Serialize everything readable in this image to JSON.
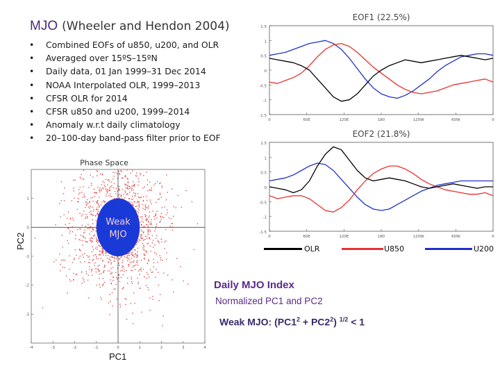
{
  "title": {
    "main": "MJO",
    "sub": "(Wheeler and Hendon 2004)"
  },
  "bullets": [
    "Combined EOFs of u850, u200, and OLR",
    "Averaged over 15ºS–15ºN",
    "Daily data, 01 Jan 1999–31 Dec 2014",
    "NOAA Interpolated OLR, 1999–2013",
    "CFSR OLR for 2014",
    "CFSR u850 and u200, 1999–2014",
    "Anomaly w.r.t daily climatology",
    "20–100-day band-pass filter prior to EOF"
  ],
  "eof1": {
    "title": "EOF1  (22.5%)",
    "yticks": [
      "1.5",
      "1",
      "0.5",
      "0",
      "-0.5",
      "-1",
      "-1.5"
    ],
    "xticks": [
      "0",
      "60E",
      "120E",
      "180",
      "120W",
      "60W",
      "0"
    ],
    "ylim": [
      -1.5,
      1.5
    ],
    "series": {
      "olr": [
        0.4,
        0.35,
        0.3,
        0.25,
        0.15,
        0.0,
        -0.3,
        -0.6,
        -0.9,
        -1.05,
        -1.0,
        -0.8,
        -0.5,
        -0.2,
        0.0,
        0.15,
        0.25,
        0.35,
        0.3,
        0.25,
        0.3,
        0.35,
        0.4,
        0.45,
        0.5,
        0.45,
        0.4,
        0.35,
        0.4
      ],
      "u850": [
        -0.4,
        -0.45,
        -0.35,
        -0.25,
        -0.1,
        0.15,
        0.45,
        0.7,
        0.85,
        0.9,
        0.8,
        0.6,
        0.35,
        0.1,
        -0.1,
        -0.3,
        -0.5,
        -0.65,
        -0.75,
        -0.8,
        -0.75,
        -0.7,
        -0.6,
        -0.5,
        -0.45,
        -0.4,
        -0.35,
        -0.3,
        -0.4
      ],
      "u200": [
        0.5,
        0.55,
        0.6,
        0.7,
        0.8,
        0.9,
        0.95,
        1.0,
        0.9,
        0.7,
        0.4,
        0.05,
        -0.3,
        -0.6,
        -0.8,
        -0.9,
        -0.95,
        -0.85,
        -0.7,
        -0.5,
        -0.3,
        -0.05,
        0.15,
        0.3,
        0.45,
        0.5,
        0.55,
        0.55,
        0.5
      ]
    }
  },
  "eof2": {
    "title": "EOF2  (21.8%)",
    "yticks": [
      "1.5",
      "1",
      "0.5",
      "0",
      "-0.5",
      "-1",
      "-1.5"
    ],
    "xticks": [
      "0",
      "60E",
      "120E",
      "180",
      "120W",
      "60W",
      "0"
    ],
    "ylim": [
      -1.5,
      1.5
    ],
    "series": {
      "olr": [
        0.0,
        -0.05,
        -0.1,
        -0.2,
        -0.1,
        0.2,
        0.7,
        1.1,
        1.35,
        1.25,
        0.9,
        0.55,
        0.3,
        0.2,
        0.25,
        0.3,
        0.25,
        0.2,
        0.1,
        0.0,
        -0.05,
        0.0,
        0.05,
        0.1,
        0.05,
        0.0,
        -0.05,
        0.0,
        0.0
      ],
      "u850": [
        -0.3,
        -0.4,
        -0.35,
        -0.3,
        -0.3,
        -0.4,
        -0.6,
        -0.8,
        -0.85,
        -0.7,
        -0.45,
        -0.1,
        0.2,
        0.45,
        0.6,
        0.7,
        0.7,
        0.6,
        0.45,
        0.25,
        0.1,
        0.0,
        -0.1,
        -0.15,
        -0.2,
        -0.25,
        -0.25,
        -0.2,
        -0.3
      ],
      "u200": [
        0.2,
        0.25,
        0.3,
        0.4,
        0.55,
        0.7,
        0.8,
        0.75,
        0.55,
        0.25,
        -0.05,
        -0.35,
        -0.6,
        -0.75,
        -0.8,
        -0.75,
        -0.6,
        -0.45,
        -0.3,
        -0.15,
        -0.05,
        0.05,
        0.1,
        0.15,
        0.2,
        0.2,
        0.2,
        0.2,
        0.2
      ]
    }
  },
  "legend": [
    {
      "label": "OLR",
      "color": "#000000"
    },
    {
      "label": "U850",
      "color": "#e83030"
    },
    {
      "label": "U200",
      "color": "#2030c8"
    }
  ],
  "phase_space": {
    "title": "Phase  Space",
    "xticks": [
      "-4",
      "-3",
      "-2",
      "-1",
      "0",
      "1",
      "2",
      "3",
      "4"
    ],
    "yticks": [
      "1",
      "0",
      "-1",
      "-2",
      "-3"
    ],
    "xlim": [
      -4,
      4
    ],
    "ylim": [
      -4,
      2
    ],
    "weak_label_line1": "Weak",
    "weak_label_line2": "MJO",
    "xlabel": "PC1",
    "ylabel": "PC2",
    "scatter_color": "#e05050",
    "weak_color": "#1a3ad8"
  },
  "index": {
    "title": "Daily MJO Index",
    "subtitle": "Normalized PC1 and PC2",
    "formula_a": "Weak MJO: (PC1",
    "formula_b": " + PC2",
    "formula_c": ")",
    "formula_d": " < 1",
    "sup2": "2",
    "sup_half": "1/2"
  }
}
